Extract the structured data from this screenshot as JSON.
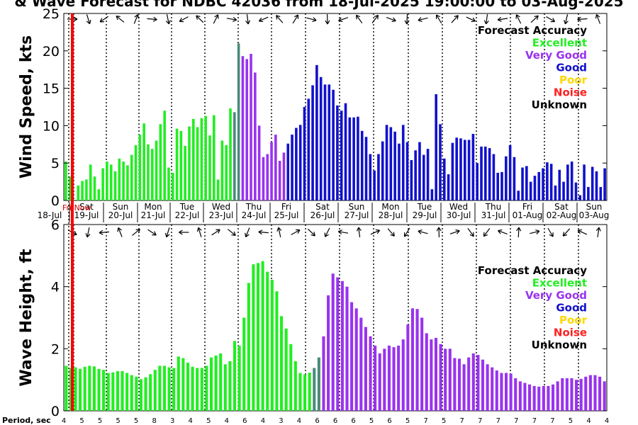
{
  "title": "& Wave Forecast for NDBC 42036 from 18-Jul-2025 19:00:00 to 03-Aug-2025",
  "colors": {
    "excellent": "#22ee22",
    "very_good": "#9933ee",
    "good": "#1111cc",
    "poor": "#ffd700",
    "noise": "#ff2222",
    "unknown": "#000000",
    "transition": "#4a8a7a",
    "now_line": "#ff0000"
  },
  "legend": {
    "title": "Forecast Accuracy",
    "items": [
      {
        "label": "Excellent",
        "key": "excellent"
      },
      {
        "label": "Very Good",
        "key": "very_good"
      },
      {
        "label": "Good",
        "key": "good"
      },
      {
        "label": "Poor",
        "key": "poor"
      },
      {
        "label": "Noise",
        "key": "noise"
      },
      {
        "label": "Unknown",
        "key": "unknown"
      }
    ]
  },
  "now_label": "Fri Now",
  "period_label": "Period, sec",
  "days": [
    {
      "dow": "",
      "date": "18-Jul"
    },
    {
      "dow": "Sat",
      "date": "19-Jul"
    },
    {
      "dow": "Sun",
      "date": "20-Jul"
    },
    {
      "dow": "Mon",
      "date": "21-Jul"
    },
    {
      "dow": "Tue",
      "date": "22-Jul"
    },
    {
      "dow": "Wed",
      "date": "23-Jul"
    },
    {
      "dow": "Thu",
      "date": "24-Jul"
    },
    {
      "dow": "Fri",
      "date": "25-Jul"
    },
    {
      "dow": "Sat",
      "date": "26-Jul"
    },
    {
      "dow": "Sun",
      "date": "27-Jul"
    },
    {
      "dow": "Mon",
      "date": "28-Jul"
    },
    {
      "dow": "Tue",
      "date": "29-Jul"
    },
    {
      "dow": "Wed",
      "date": "30-Jul"
    },
    {
      "dow": "Thu",
      "date": "31-Jul"
    },
    {
      "dow": "Fri",
      "date": "01-Aug"
    },
    {
      "dow": "Sat",
      "date": "02-Aug"
    },
    {
      "dow": "Sun",
      "date": "03-Aug"
    }
  ],
  "periods": [
    "4",
    "5",
    "5",
    "5",
    "5",
    "8",
    "3",
    "4",
    "5",
    "4",
    "6",
    "4",
    "3",
    "4",
    "6",
    "6",
    "6",
    "5",
    "6",
    "5",
    "7",
    "5",
    "7",
    "7",
    "7",
    "7",
    "7",
    "7",
    "5",
    "4",
    "4"
  ],
  "chart_data": [
    {
      "type": "bar",
      "ylabel": "Wind Speed, kts",
      "ylim": [
        0,
        25
      ],
      "yticks": [
        0,
        5,
        10,
        15,
        20,
        25
      ],
      "grid": false,
      "series": [
        {
          "key": "excellent",
          "values": [
            5.2,
            3.2,
            0,
            2.0,
            2.6,
            2.8,
            4.8,
            3.2,
            1.5,
            4.3,
            5.2,
            4.8,
            3.9,
            5.6,
            5.2,
            4.7,
            6.1,
            7.4,
            8.8,
            10.3,
            7.5,
            6.9,
            8.0,
            10.2,
            12.0,
            4.4,
            3.7,
            9.6,
            9.3,
            7.3,
            9.9,
            10.9,
            9.8,
            11.0,
            11.3,
            8.7,
            11.4,
            2.8,
            8.0,
            7.4,
            12.3
          ]
        },
        {
          "key": "transition",
          "values": [
            11.8,
            21.0
          ]
        },
        {
          "key": "very_good",
          "values": [
            19.3,
            18.9,
            19.6,
            17.1,
            10.0,
            5.8,
            6.2,
            7.8,
            8.8,
            5.3,
            6.4
          ]
        },
        {
          "key": "good",
          "values": [
            7.6,
            8.8,
            9.7,
            10.1,
            12.5,
            13.6,
            15.4,
            18.1,
            16.5,
            15.5,
            15.5,
            14.8,
            12.7,
            12.0,
            13.0,
            11.1,
            11.1,
            11.2,
            9.3,
            8.5,
            6.2,
            4.0,
            6.2,
            7.9,
            10.1,
            9.8,
            9.2,
            7.6,
            10.1,
            7.8,
            5.4,
            6.7,
            7.8,
            6.1,
            6.9,
            1.5,
            14.2,
            10.2,
            5.6,
            3.5,
            7.7,
            8.4,
            8.3,
            8.1,
            8.1,
            8.9,
            5.0,
            7.2,
            7.2,
            7.0,
            6.2,
            3.7,
            3.8,
            5.9,
            7.4,
            5.8,
            1.3,
            4.4,
            4.6,
            2.5,
            3.3,
            3.8,
            4.3,
            5.1,
            4.9,
            2.0,
            4.1,
            2.5,
            4.8,
            5.2,
            2.4,
            0.7,
            4.8,
            1.8,
            4.5,
            3.9,
            1.8,
            4.3
          ]
        }
      ]
    },
    {
      "type": "bar",
      "ylabel": "Wave Height, ft",
      "ylim": [
        0,
        6
      ],
      "yticks": [
        0,
        2,
        4,
        6
      ],
      "grid": false,
      "series": [
        {
          "key": "excellent",
          "values": [
            1.45,
            1.38,
            1.4,
            1.35,
            1.42,
            1.45,
            1.43,
            1.35,
            1.32,
            1.22,
            1.24,
            1.28,
            1.28,
            1.22,
            1.15,
            1.1,
            1.02,
            1.08,
            1.18,
            1.32,
            1.45,
            1.45,
            1.4,
            1.38,
            1.75,
            1.7,
            1.55,
            1.42,
            1.38,
            1.38,
            1.45,
            1.72,
            1.78,
            1.85,
            1.5,
            1.6,
            2.25,
            2.1,
            3.0,
            4.12,
            4.72,
            4.76,
            4.82,
            4.48,
            4.22,
            3.85,
            3.05,
            2.65,
            2.15,
            1.6,
            1.22,
            1.17,
            1.23
          ]
        },
        {
          "key": "transition",
          "values": [
            1.38,
            1.72
          ]
        },
        {
          "key": "very_good",
          "values": [
            2.4,
            3.72,
            4.42,
            4.3,
            4.18,
            4.0,
            3.5,
            3.3,
            3.0,
            2.7,
            2.4,
            2.1,
            1.85,
            2.0,
            2.1,
            2.05,
            2.1,
            2.3,
            2.78,
            3.3,
            3.28,
            3.0,
            2.5,
            2.3,
            2.35,
            2.15,
            2.0,
            2.0,
            1.7,
            1.68,
            1.5,
            1.72,
            1.85,
            1.8,
            1.65,
            1.5,
            1.4,
            1.3,
            1.22,
            1.22,
            1.2,
            1.05,
            0.95,
            0.9,
            0.85,
            0.8,
            0.78,
            0.8,
            0.8,
            0.85,
            0.95,
            1.05,
            1.05,
            1.05,
            1.0,
            1.03,
            1.1,
            1.15,
            1.15,
            1.1,
            0.95
          ]
        }
      ]
    }
  ]
}
